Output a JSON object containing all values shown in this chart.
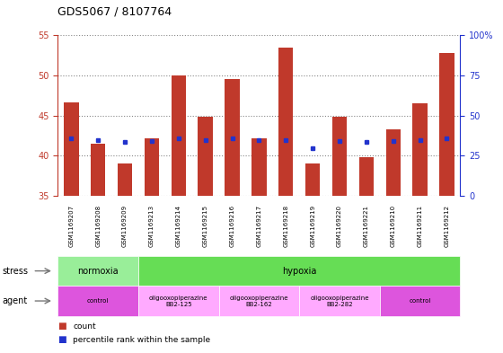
{
  "title": "GDS5067 / 8107764",
  "samples": [
    "GSM1169207",
    "GSM1169208",
    "GSM1169209",
    "GSM1169213",
    "GSM1169214",
    "GSM1169215",
    "GSM1169216",
    "GSM1169217",
    "GSM1169218",
    "GSM1169219",
    "GSM1169220",
    "GSM1169221",
    "GSM1169210",
    "GSM1169211",
    "GSM1169212"
  ],
  "counts": [
    46.7,
    41.5,
    39.0,
    42.2,
    50.0,
    44.8,
    49.5,
    42.2,
    53.5,
    39.0,
    44.8,
    39.8,
    43.3,
    46.5,
    52.8
  ],
  "percentile_ranks": [
    42.2,
    42.0,
    41.7,
    41.8,
    42.2,
    41.9,
    42.2,
    41.9,
    42.0,
    40.9,
    41.8,
    41.7,
    41.8,
    42.0,
    42.2
  ],
  "ylim_left": [
    35,
    55
  ],
  "yticks_left": [
    35,
    40,
    45,
    50,
    55
  ],
  "ylim_right": [
    0,
    100
  ],
  "yticks_right": [
    0,
    25,
    50,
    75,
    100
  ],
  "bar_color": "#C0392B",
  "dot_color": "#2233CC",
  "bg_color": "#FFFFFF",
  "plot_bg": "#FFFFFF",
  "stress_info": [
    [
      0,
      3,
      "#99EE99",
      "normoxia"
    ],
    [
      3,
      15,
      "#66DD55",
      "hypoxia"
    ]
  ],
  "agent_info": [
    [
      0,
      3,
      "#DD55DD",
      "control"
    ],
    [
      3,
      6,
      "#FFAAFF",
      "oligooxopiperazine\nBB2-125"
    ],
    [
      6,
      9,
      "#FFAAFF",
      "oligooxopiperazine\nBB2-162"
    ],
    [
      9,
      12,
      "#FFAAFF",
      "oligooxopiperazine\nBB2-282"
    ],
    [
      12,
      15,
      "#DD55DD",
      "control"
    ]
  ]
}
